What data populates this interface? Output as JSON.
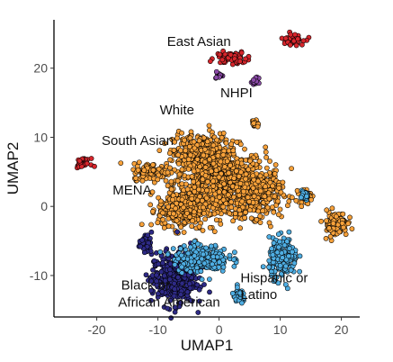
{
  "chart_data": {
    "type": "scatter",
    "xlabel": "UMAP1",
    "ylabel": "UMAP2",
    "xlim": [
      -27,
      23
    ],
    "ylim": [
      -16,
      27
    ],
    "xticks": [
      -20,
      -10,
      0,
      10,
      20
    ],
    "yticks": [
      -10,
      0,
      10,
      20
    ],
    "grid": false,
    "legend": "none",
    "annotations": [
      {
        "text": "East Asian",
        "x": -8.5,
        "y": 23.2
      },
      {
        "text": "NHPI",
        "x": 0.2,
        "y": 15.8
      },
      {
        "text": "White",
        "x": -9.7,
        "y": 13.3
      },
      {
        "text": "South Asian",
        "x": -19.2,
        "y": 8.9
      },
      {
        "text": "MENA",
        "x": -17.4,
        "y": 1.7
      },
      {
        "text": "Black or",
        "x": -16.0,
        "y": -12.0
      },
      {
        "text": "African American",
        "x": -16.5,
        "y": -14.5
      },
      {
        "text": "Hispanic or",
        "x": 3.5,
        "y": -11.0
      },
      {
        "text": "Latino",
        "x": 3.5,
        "y": -13.4
      }
    ],
    "series": [
      {
        "color": "#f7a13a",
        "clusters": [
          {
            "cx": 0,
            "cy": 3.5,
            "rx": 7.5,
            "ry": 5.0
          },
          {
            "cx": -3,
            "cy": 7.5,
            "rx": 4.5,
            "ry": 3.0
          },
          {
            "cx": 6,
            "cy": 2.0,
            "rx": 4.0,
            "ry": 3.5
          },
          {
            "cx": -6,
            "cy": -0.5,
            "rx": 4.0,
            "ry": 2.8
          },
          {
            "cx": -11,
            "cy": 5.0,
            "rx": 3.0,
            "ry": 1.2
          },
          {
            "cx": 19,
            "cy": -2.5,
            "rx": 2.0,
            "ry": 1.8
          },
          {
            "cx": 14,
            "cy": 1.5,
            "rx": 1.0,
            "ry": 1.0
          },
          {
            "cx": 6,
            "cy": 12.0,
            "rx": 0.6,
            "ry": 0.6
          }
        ]
      },
      {
        "color": "#2e2a86",
        "clusters": [
          {
            "cx": -7.5,
            "cy": -10.5,
            "rx": 3.6,
            "ry": 3.8
          },
          {
            "cx": -12,
            "cy": -5.5,
            "rx": 1.0,
            "ry": 1.2
          }
        ]
      },
      {
        "color": "#4faee3",
        "clusters": [
          {
            "cx": -3,
            "cy": -7.5,
            "rx": 4.5,
            "ry": 2.0
          },
          {
            "cx": 10.5,
            "cy": -7.5,
            "rx": 2.3,
            "ry": 2.8
          },
          {
            "cx": 3.2,
            "cy": -13.0,
            "rx": 1.1,
            "ry": 1.0
          },
          {
            "cx": 14,
            "cy": 1.5,
            "rx": 0.8,
            "ry": 0.8
          }
        ]
      },
      {
        "color": "#d7262c",
        "clusters": [
          {
            "cx": 2.0,
            "cy": 21.5,
            "rx": 2.5,
            "ry": 0.9
          },
          {
            "cx": 12.0,
            "cy": 24.2,
            "rx": 1.8,
            "ry": 0.8
          },
          {
            "cx": -22.3,
            "cy": 6.3,
            "rx": 1.2,
            "ry": 0.6
          }
        ]
      },
      {
        "color": "#8b4aa8",
        "clusters": [
          {
            "cx": 6.0,
            "cy": 18.0,
            "rx": 0.5,
            "ry": 0.6
          },
          {
            "cx": 0.0,
            "cy": 19.0,
            "rx": 0.5,
            "ry": 0.5
          }
        ]
      }
    ]
  }
}
